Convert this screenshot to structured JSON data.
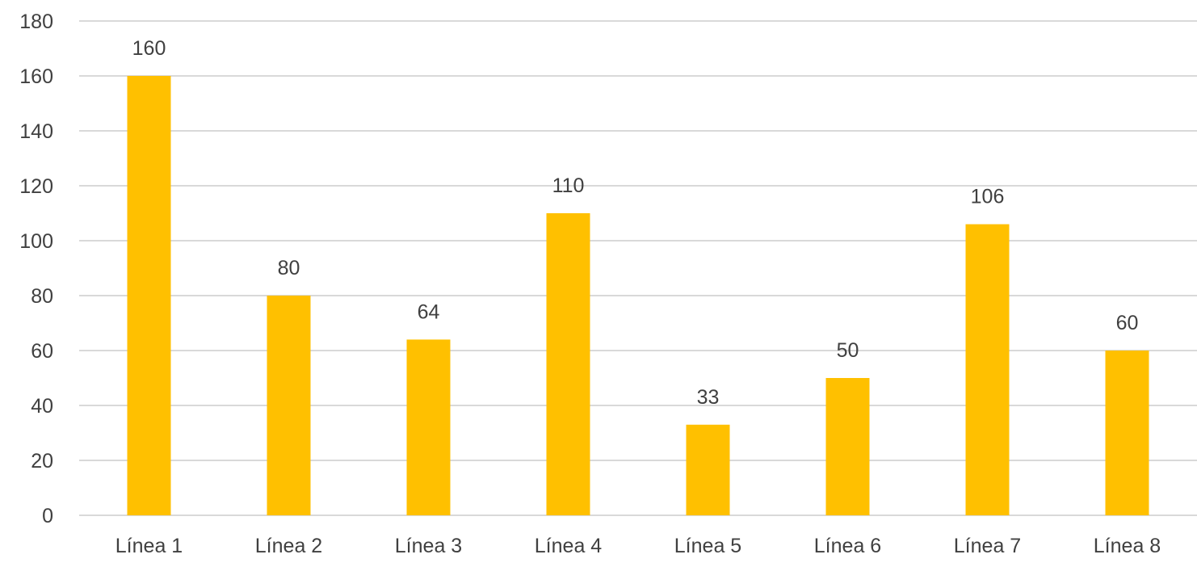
{
  "chart_data": {
    "type": "bar",
    "title": "",
    "xlabel": "",
    "ylabel": "",
    "categories": [
      "Línea 1",
      "Línea 2",
      "Línea 3",
      "Línea 4",
      "Línea 5",
      "Línea 6",
      "Línea 7",
      "Línea 8"
    ],
    "values": [
      160,
      80,
      64,
      110,
      33,
      50,
      106,
      60
    ],
    "ylim": [
      0,
      180
    ],
    "yticks": [
      0,
      20,
      40,
      60,
      80,
      100,
      120,
      140,
      160,
      180
    ],
    "grid": true,
    "data_labels": true,
    "legend": "none",
    "colors": {
      "bar": "#FFC000",
      "grid": "#D9D9D9",
      "text": "#404040"
    }
  }
}
